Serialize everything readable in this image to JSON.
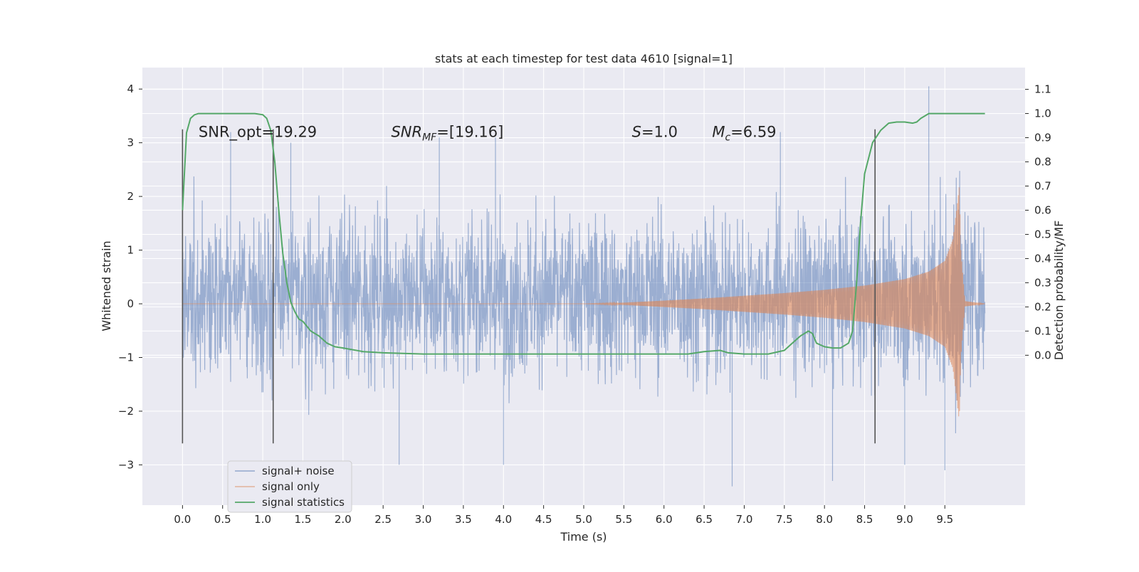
{
  "chart_data": {
    "type": "line",
    "title": "stats at each timestep for test data 4610 [signal=1]",
    "xlabel": "Time (s)",
    "ylabel": "Whitened strain",
    "ylabel_right": "Detection probability/MF",
    "xlim": [
      -0.5,
      10.5
    ],
    "ylim": [
      -3.75,
      4.4
    ],
    "ylim_right": [
      -0.62,
      1.19
    ],
    "x_ticks": [
      "0.0",
      "0.5",
      "1.0",
      "1.5",
      "2.0",
      "2.5",
      "3.0",
      "3.5",
      "4.0",
      "4.5",
      "5.0",
      "5.5",
      "6.0",
      "6.5",
      "7.0",
      "7.5",
      "8.0",
      "8.5",
      "9.0",
      "9.5"
    ],
    "y_ticks": [
      "4",
      "3",
      "2",
      "1",
      "0",
      "−1",
      "−2",
      "−3"
    ],
    "y_ticks_right": [
      "1.1",
      "1.0",
      "0.9",
      "0.8",
      "0.7",
      "0.6",
      "0.5",
      "0.4",
      "0.3",
      "0.2",
      "0.1",
      "0.0"
    ],
    "grid": true,
    "background": "#eaeaf2",
    "annotations": [
      {
        "label": "SNR_opt=19.29",
        "x": 0.2,
        "y": 3.2
      },
      {
        "label": "SNR",
        "sub": "MF",
        "value": "=[19.16]",
        "x": 2.6,
        "y": 3.2
      },
      {
        "label": "S",
        "value": "=1.0",
        "x": 5.6,
        "y": 3.2
      },
      {
        "label": "M",
        "sub": "c",
        "value": "=6.59",
        "x": 6.6,
        "y": 3.2
      }
    ],
    "vlines": [
      0.0,
      1.13,
      8.63
    ],
    "vline_range": [
      -2.6,
      3.25
    ],
    "legend": {
      "placement": "lower-left",
      "entries": [
        "signal+ noise",
        "signal only",
        "signal statistics"
      ]
    },
    "series": [
      {
        "name": "signal+ noise",
        "color": "#4c72b0",
        "x_range": [
          0.0,
          10.0
        ],
        "typical_envelope": [
          -1.6,
          2.0
        ],
        "peak_spikes": [
          {
            "x": 0.6,
            "y": 3.2
          },
          {
            "x": 1.35,
            "y": 3.0
          },
          {
            "x": 3.2,
            "y": 3.1
          },
          {
            "x": 3.9,
            "y": 3.1
          },
          {
            "x": 4.0,
            "y": -3.0
          },
          {
            "x": 2.7,
            "y": -3.0
          },
          {
            "x": 6.85,
            "y": -3.4
          },
          {
            "x": 7.45,
            "y": 3.2
          },
          {
            "x": 8.1,
            "y": -3.3
          },
          {
            "x": 9.0,
            "y": -3.0
          },
          {
            "x": 9.3,
            "y": 4.05
          },
          {
            "x": 9.5,
            "y": -3.1
          }
        ]
      },
      {
        "name": "signal only",
        "color": "#dd8452",
        "x": [
          5.0,
          5.5,
          6.0,
          6.5,
          7.0,
          7.5,
          8.0,
          8.5,
          9.0,
          9.3,
          9.5,
          9.6,
          9.65,
          9.68,
          9.7,
          9.75,
          10.0
        ],
        "amplitude": [
          0.0,
          0.02,
          0.06,
          0.1,
          0.15,
          0.2,
          0.26,
          0.34,
          0.46,
          0.6,
          0.8,
          1.2,
          1.8,
          2.2,
          1.0,
          0.05,
          0.0
        ]
      },
      {
        "name": "signal statistics",
        "color": "#55a868",
        "axis": "right",
        "x": [
          0.0,
          0.05,
          0.1,
          0.15,
          0.2,
          0.3,
          0.4,
          0.5,
          0.6,
          0.7,
          0.8,
          0.9,
          1.0,
          1.05,
          1.1,
          1.15,
          1.2,
          1.25,
          1.3,
          1.35,
          1.4,
          1.45,
          1.5,
          1.6,
          1.7,
          1.8,
          1.9,
          2.0,
          2.25,
          2.5,
          3.0,
          3.5,
          4.0,
          4.5,
          5.0,
          5.5,
          6.0,
          6.3,
          6.5,
          6.7,
          6.8,
          7.0,
          7.3,
          7.5,
          7.6,
          7.7,
          7.8,
          7.85,
          7.9,
          8.0,
          8.1,
          8.2,
          8.3,
          8.35,
          8.4,
          8.45,
          8.5,
          8.6,
          8.7,
          8.8,
          8.9,
          9.0,
          9.1,
          9.15,
          9.2,
          9.3,
          9.4,
          9.5,
          10.0
        ],
        "y": [
          0.6,
          0.92,
          0.98,
          0.995,
          1.0,
          1.0,
          1.0,
          1.0,
          1.0,
          1.0,
          1.0,
          1.0,
          0.995,
          0.98,
          0.93,
          0.8,
          0.6,
          0.42,
          0.3,
          0.22,
          0.18,
          0.15,
          0.14,
          0.1,
          0.08,
          0.05,
          0.035,
          0.03,
          0.015,
          0.01,
          0.005,
          0.005,
          0.005,
          0.005,
          0.005,
          0.005,
          0.005,
          0.005,
          0.015,
          0.02,
          0.01,
          0.005,
          0.005,
          0.02,
          0.05,
          0.08,
          0.1,
          0.09,
          0.05,
          0.035,
          0.03,
          0.03,
          0.05,
          0.1,
          0.3,
          0.55,
          0.75,
          0.88,
          0.93,
          0.96,
          0.965,
          0.965,
          0.96,
          0.965,
          0.98,
          1.0,
          1.0,
          1.0,
          1.0
        ]
      }
    ]
  }
}
